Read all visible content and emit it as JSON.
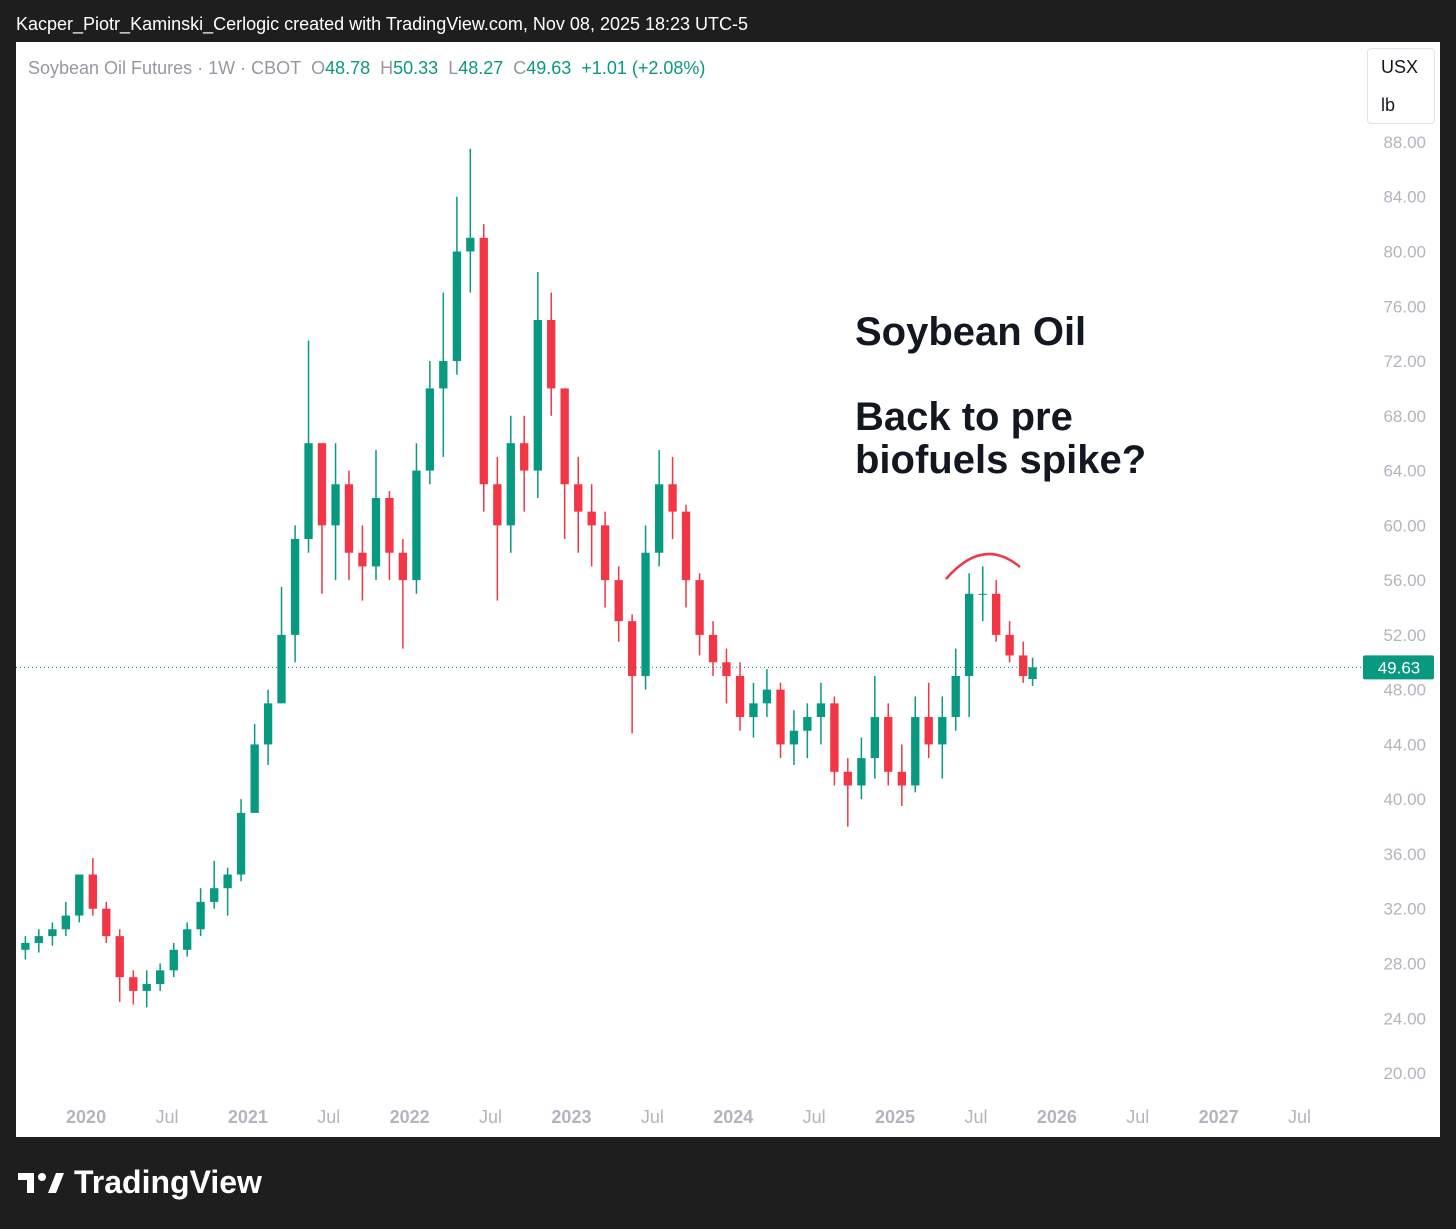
{
  "top_bar": "Kacper_Piotr_Kaminski_Cerlogic created with TradingView.com, Nov 08, 2025 18:23 UTC-5",
  "header": {
    "symbol": "Soybean Oil Futures · 1W · CBOT",
    "ohlc": [
      {
        "key": "O",
        "value": "48.78"
      },
      {
        "key": "H",
        "value": "50.33"
      },
      {
        "key": "L",
        "value": "48.27"
      },
      {
        "key": "C",
        "value": "49.63"
      }
    ],
    "change": "+1.01 (+2.08%)"
  },
  "units": [
    "USX",
    "lb"
  ],
  "logo": "TradingView",
  "chart_data": {
    "type": "candlestick",
    "title": "Soybean Oil",
    "subtitle_lines": [
      "Back to pre",
      "biofuels spike?"
    ],
    "up_color": "#089981",
    "down_color": "#f23645",
    "x": [
      2019.625,
      2019.708,
      2019.792,
      2019.875,
      2019.958,
      2020.042,
      2020.125,
      2020.208,
      2020.292,
      2020.375,
      2020.458,
      2020.542,
      2020.625,
      2020.708,
      2020.792,
      2020.875,
      2020.958,
      2021.042,
      2021.125,
      2021.208,
      2021.292,
      2021.375,
      2021.458,
      2021.542,
      2021.625,
      2021.708,
      2021.792,
      2021.875,
      2021.958,
      2022.042,
      2022.125,
      2022.208,
      2022.292,
      2022.375,
      2022.458,
      2022.542,
      2022.625,
      2022.708,
      2022.792,
      2022.875,
      2022.958,
      2023.042,
      2023.125,
      2023.208,
      2023.292,
      2023.375,
      2023.458,
      2023.542,
      2023.625,
      2023.708,
      2023.792,
      2023.875,
      2023.958,
      2024.042,
      2024.125,
      2024.208,
      2024.292,
      2024.375,
      2024.458,
      2024.542,
      2024.625,
      2024.708,
      2024.792,
      2024.875,
      2024.958,
      2025.042,
      2025.125,
      2025.208,
      2025.292,
      2025.375,
      2025.458,
      2025.542,
      2025.625,
      2025.708,
      2025.792,
      2025.85
    ],
    "open": [
      29,
      29.5,
      30,
      30.5,
      31.5,
      34.5,
      32,
      30,
      27,
      26,
      26.5,
      27.5,
      29,
      30.5,
      32.5,
      33.5,
      34.5,
      39,
      44,
      47,
      52,
      59,
      66,
      60,
      63,
      58,
      57,
      62,
      58,
      56,
      64,
      70,
      72,
      80,
      81,
      63,
      60,
      66,
      64,
      75,
      70,
      63,
      61,
      60,
      56,
      53,
      49,
      58,
      63,
      61,
      56,
      52,
      50,
      49,
      46,
      47,
      48,
      44,
      45,
      46,
      47,
      42,
      41,
      43,
      46,
      42,
      41,
      46,
      44,
      46,
      49,
      55,
      55,
      52,
      50.5,
      48.78
    ],
    "high": [
      30,
      30.5,
      31,
      32.5,
      34.5,
      35.7,
      32.5,
      30.5,
      27.5,
      27.5,
      28,
      29.5,
      31,
      33.5,
      35.5,
      35,
      40,
      45.5,
      48,
      55.5,
      60,
      73.5,
      66,
      66,
      64,
      60,
      65.5,
      62.5,
      59,
      66,
      72,
      77,
      84,
      87.5,
      82,
      65,
      68,
      68,
      78.5,
      77,
      70,
      65,
      63,
      61,
      57,
      53.5,
      60,
      65.5,
      65,
      61.5,
      56.5,
      53,
      51,
      50,
      48.5,
      49.5,
      48.5,
      46.5,
      47,
      48.5,
      47.5,
      43,
      44.5,
      49,
      47,
      44,
      47.5,
      48.5,
      47.5,
      51,
      56.5,
      57,
      56,
      53,
      51.5,
      50.33
    ],
    "low": [
      28.3,
      28.8,
      29.3,
      30,
      31,
      31.5,
      29.5,
      25.2,
      25,
      24.8,
      26,
      27,
      28.5,
      30,
      32,
      31.5,
      34,
      39,
      42.5,
      47,
      50,
      58,
      55,
      56,
      56,
      54.5,
      56,
      56,
      51,
      55,
      63,
      65,
      71,
      77,
      61,
      54.5,
      58,
      61,
      62,
      68,
      59,
      58,
      57,
      54,
      51.5,
      44.8,
      48,
      57,
      59,
      54,
      50.5,
      49,
      47,
      45,
      44.5,
      46,
      43,
      42.5,
      43,
      44,
      41,
      38,
      40,
      41.5,
      41,
      39.5,
      40.5,
      43,
      41.5,
      45,
      46,
      53,
      51.5,
      50,
      48.5,
      48.27
    ],
    "close": [
      29.5,
      30,
      30.5,
      31.5,
      34.5,
      32,
      30,
      27,
      26,
      26.5,
      27.5,
      29,
      30.5,
      32.5,
      33.5,
      34.5,
      39,
      44,
      47,
      52,
      59,
      66,
      60,
      63,
      58,
      57,
      62,
      58,
      56,
      64,
      70,
      72,
      80,
      81,
      63,
      60,
      66,
      64,
      75,
      70,
      63,
      61,
      60,
      56,
      53,
      49,
      58,
      63,
      61,
      56,
      52,
      50,
      49,
      46,
      47,
      48,
      44,
      45,
      46,
      47,
      42,
      41,
      43,
      46,
      42,
      41,
      46,
      44,
      46,
      49,
      55,
      55,
      52,
      50.5,
      49,
      49.63
    ],
    "last_price": 49.63,
    "xlim": [
      2019.567,
      2027.886
    ],
    "xticks": [
      {
        "value": 2020,
        "label": "2020"
      },
      {
        "value": 2020.5,
        "label": "Jul"
      },
      {
        "value": 2021,
        "label": "2021"
      },
      {
        "value": 2021.5,
        "label": "Jul"
      },
      {
        "value": 2022,
        "label": "2022"
      },
      {
        "value": 2022.5,
        "label": "Jul"
      },
      {
        "value": 2023,
        "label": "2023"
      },
      {
        "value": 2023.5,
        "label": "Jul"
      },
      {
        "value": 2024,
        "label": "2024"
      },
      {
        "value": 2024.5,
        "label": "Jul"
      },
      {
        "value": 2025,
        "label": "2025"
      },
      {
        "value": 2025.5,
        "label": "Jul"
      },
      {
        "value": 2026,
        "label": "2026"
      },
      {
        "value": 2026.5,
        "label": "Jul"
      },
      {
        "value": 2027,
        "label": "2027"
      },
      {
        "value": 2027.5,
        "label": "Jul"
      }
    ],
    "ylim": [
      18.25,
      95.3
    ],
    "yticks": [
      {
        "value": 20,
        "label": "20.00"
      },
      {
        "value": 24,
        "label": "24.00"
      },
      {
        "value": 28,
        "label": "28.00"
      },
      {
        "value": 32,
        "label": "32.00"
      },
      {
        "value": 36,
        "label": "36.00"
      },
      {
        "value": 40,
        "label": "40.00"
      },
      {
        "value": 44,
        "label": "44.00"
      },
      {
        "value": 48,
        "label": "48.00"
      },
      {
        "value": 52,
        "label": "52.00"
      },
      {
        "value": 56,
        "label": "56.00"
      },
      {
        "value": 60,
        "label": "60.00"
      },
      {
        "value": 64,
        "label": "64.00"
      },
      {
        "value": 68,
        "label": "68.00"
      },
      {
        "value": 72,
        "label": "72.00"
      },
      {
        "value": 76,
        "label": "76.00"
      },
      {
        "value": 80,
        "label": "80.00"
      },
      {
        "value": 84,
        "label": "84.00"
      },
      {
        "value": 88,
        "label": "88.00"
      }
    ],
    "grid": false
  }
}
